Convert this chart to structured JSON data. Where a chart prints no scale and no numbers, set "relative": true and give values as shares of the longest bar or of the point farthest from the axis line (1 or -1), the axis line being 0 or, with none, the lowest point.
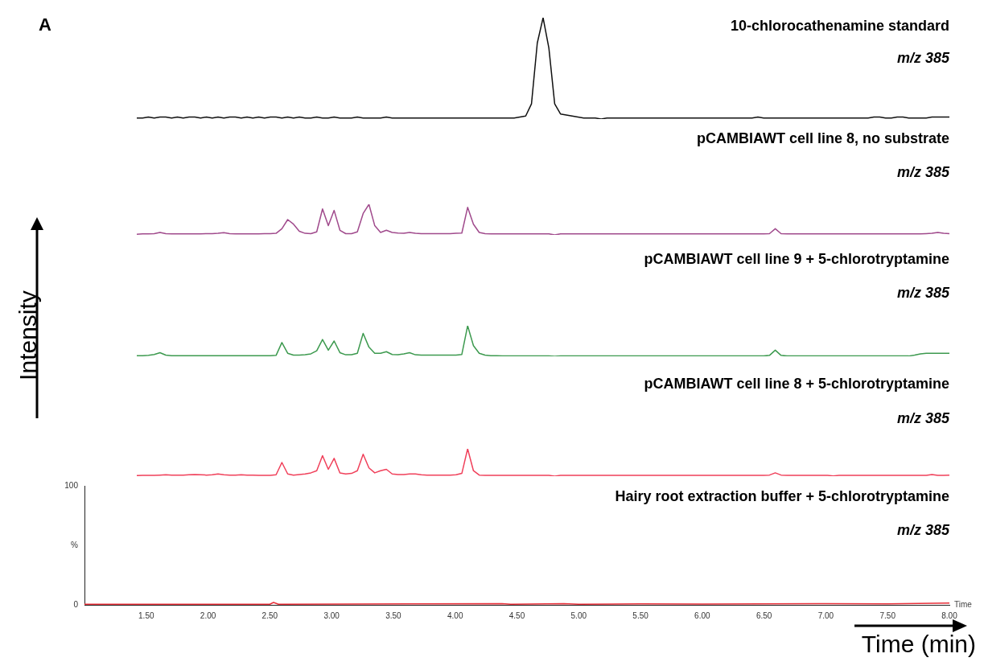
{
  "chart_data": [
    {
      "type": "line",
      "title": "10-chlorocathenamine standard",
      "subtitle": "m/z 385",
      "annotations": [
        "A"
      ],
      "relative": true,
      "color": "#111111",
      "categories": [
        null,
        null,
        null,
        null,
        null,
        null,
        null,
        null,
        null,
        null,
        null,
        null,
        null,
        null,
        null,
        null,
        null,
        null,
        null,
        null,
        null,
        null,
        null,
        null,
        null,
        null,
        null,
        null,
        null,
        null,
        null,
        null,
        null,
        null,
        null,
        null,
        null,
        null,
        null,
        null,
        null,
        null,
        null,
        null,
        null,
        null,
        null,
        null,
        null,
        null,
        null,
        null,
        null,
        null,
        null,
        null,
        null,
        null,
        null,
        null,
        null,
        null,
        null,
        null,
        null,
        null,
        null,
        null,
        null,
        null,
        null,
        null,
        null,
        null,
        null,
        null,
        null,
        null,
        null,
        null,
        null,
        null,
        null,
        null,
        null,
        null,
        null,
        null,
        null,
        null,
        null,
        null,
        null,
        null,
        null,
        null,
        null,
        null,
        null,
        null,
        null,
        null,
        null,
        null,
        null,
        null,
        null,
        null,
        null,
        null,
        null,
        null,
        null,
        null,
        null,
        null,
        null,
        null,
        null,
        null,
        null,
        null,
        null,
        null,
        null,
        null,
        null,
        null,
        null,
        null,
        null,
        null,
        null,
        null,
        null,
        null,
        null,
        null,
        null,
        null,
        null
      ],
      "values": [
        0.01,
        0.01,
        0.02,
        0.01,
        0.02,
        0.02,
        0.01,
        0.02,
        0.01,
        0.02,
        0.02,
        0.01,
        0.02,
        0.01,
        0.02,
        0.01,
        0.02,
        0.02,
        0.01,
        0.02,
        0.01,
        0.02,
        0.01,
        0.02,
        0.02,
        0.01,
        0.02,
        0.01,
        0.02,
        0.01,
        0.01,
        0.02,
        0.01,
        0.01,
        0.02,
        0.01,
        0.01,
        0.01,
        0.02,
        0.01,
        0.01,
        0.01,
        0.01,
        0.02,
        0.01,
        0.01,
        0.01,
        0.01,
        0.01,
        0.01,
        0.01,
        0.01,
        0.01,
        0.01,
        0.01,
        0.01,
        0.01,
        0.01,
        0.01,
        0.01,
        0.01,
        0.01,
        0.01,
        0.01,
        0.01,
        0.01,
        0.02,
        0.03,
        0.15,
        0.75,
        1,
        0.7,
        0.15,
        0.05,
        0.04,
        0.03,
        0.02,
        0.01,
        0.01,
        0.01,
        0,
        0.01,
        0.01,
        0.01,
        0.01,
        0.01,
        0.01,
        0.01,
        0.01,
        0.01,
        0.01,
        0.01,
        0.01,
        0.01,
        0.01,
        0.01,
        0.01,
        0.01,
        0.01,
        0.01,
        0.01,
        0.01,
        0.01,
        0.01,
        0.01,
        0.01,
        0.01,
        0.02,
        0.01,
        0.01,
        0.01,
        0.01,
        0.01,
        0.01,
        0.01,
        0.01,
        0.01,
        0.01,
        0.01,
        0.01,
        0.01,
        0.01,
        0.01,
        0.01,
        0.01,
        0.01,
        0.01,
        0.02,
        0.02,
        0.01,
        0.01,
        0.02,
        0.02,
        0.01,
        0.01,
        0.01,
        0.01,
        0.02,
        0.02,
        0.02,
        0.02
      ]
    },
    {
      "type": "line",
      "title": "pCAMBIAWT cell line 8, no substrate",
      "subtitle": "m/z 385",
      "relative": true,
      "color": "#a04a8c",
      "categories": [
        null,
        null,
        null,
        null,
        null,
        null,
        null,
        null,
        null,
        null,
        null,
        null,
        null,
        null,
        null,
        null,
        null,
        null,
        null,
        null,
        null,
        null,
        null,
        null,
        null,
        null,
        null,
        null,
        null,
        null,
        null,
        null,
        null,
        null,
        null,
        null,
        null,
        null,
        null,
        null,
        null,
        null,
        null,
        null,
        null,
        null,
        null,
        null,
        null,
        null,
        null,
        null,
        null,
        null,
        null,
        null,
        null,
        null,
        null,
        null,
        null,
        null,
        null,
        null,
        null,
        null,
        null,
        null,
        null,
        null,
        null,
        null,
        null,
        null,
        null,
        null,
        null,
        null,
        null,
        null,
        null,
        null,
        null,
        null,
        null,
        null,
        null,
        null,
        null,
        null,
        null,
        null,
        null,
        null,
        null,
        null,
        null,
        null,
        null,
        null,
        null,
        null,
        null,
        null,
        null,
        null,
        null,
        null,
        null,
        null,
        null,
        null,
        null,
        null,
        null,
        null,
        null,
        null,
        null,
        null,
        null,
        null,
        null,
        null,
        null,
        null,
        null,
        null,
        null,
        null,
        null,
        null,
        null,
        null,
        null,
        null,
        null,
        null,
        null,
        null,
        null
      ],
      "values": [
        0.02,
        0.03,
        0.03,
        0.04,
        0.08,
        0.04,
        0.03,
        0.03,
        0.03,
        0.03,
        0.03,
        0.03,
        0.04,
        0.04,
        0.05,
        0.07,
        0.04,
        0.03,
        0.03,
        0.03,
        0.03,
        0.03,
        0.04,
        0.04,
        0.05,
        0.2,
        0.5,
        0.35,
        0.12,
        0.05,
        0.04,
        0.1,
        0.85,
        0.3,
        0.8,
        0.15,
        0.04,
        0.04,
        0.1,
        0.7,
        1,
        0.3,
        0.08,
        0.15,
        0.08,
        0.06,
        0.05,
        0.08,
        0.05,
        0.04,
        0.04,
        0.04,
        0.04,
        0.04,
        0.04,
        0.05,
        0.06,
        0.9,
        0.35,
        0.08,
        0.04,
        0.03,
        0.03,
        0.03,
        0.03,
        0.03,
        0.03,
        0.03,
        0.03,
        0.03,
        0.03,
        0.03,
        0,
        0.03,
        0.03,
        0.03,
        0.03,
        0.03,
        0.03,
        0.03,
        0.03,
        0.03,
        0.03,
        0.03,
        0.03,
        0.03,
        0.03,
        0.03,
        0.03,
        0.03,
        0.03,
        0.03,
        0.03,
        0.03,
        0.03,
        0.03,
        0.03,
        0.03,
        0.03,
        0.03,
        0.03,
        0.03,
        0.03,
        0.03,
        0.03,
        0.03,
        0.03,
        0.03,
        0.03,
        0.04,
        0.2,
        0.04,
        0.03,
        0.03,
        0.03,
        0.03,
        0.03,
        0.03,
        0.03,
        0.03,
        0.03,
        0.03,
        0.03,
        0.03,
        0.03,
        0.03,
        0.03,
        0.03,
        0.03,
        0.03,
        0.03,
        0.03,
        0.03,
        0.03,
        0.03,
        0.03,
        0.04,
        0.05,
        0.08,
        0.05,
        0.04
      ]
    },
    {
      "type": "line",
      "title": "pCAMBIAWT cell line 9 + 5-chlorotryptamine",
      "subtitle": "m/z 385",
      "relative": true,
      "color": "#3d9a4f",
      "categories": [
        null,
        null,
        null,
        null,
        null,
        null,
        null,
        null,
        null,
        null,
        null,
        null,
        null,
        null,
        null,
        null,
        null,
        null,
        null,
        null,
        null,
        null,
        null,
        null,
        null,
        null,
        null,
        null,
        null,
        null,
        null,
        null,
        null,
        null,
        null,
        null,
        null,
        null,
        null,
        null,
        null,
        null,
        null,
        null,
        null,
        null,
        null,
        null,
        null,
        null,
        null,
        null,
        null,
        null,
        null,
        null,
        null,
        null,
        null,
        null,
        null,
        null,
        null,
        null,
        null,
        null,
        null,
        null,
        null,
        null,
        null,
        null,
        null,
        null,
        null,
        null,
        null,
        null,
        null,
        null,
        null,
        null,
        null,
        null,
        null,
        null,
        null,
        null,
        null,
        null,
        null,
        null,
        null,
        null,
        null,
        null,
        null,
        null,
        null,
        null,
        null,
        null,
        null,
        null,
        null,
        null,
        null,
        null,
        null,
        null,
        null,
        null,
        null,
        null,
        null,
        null,
        null,
        null,
        null,
        null,
        null,
        null,
        null,
        null,
        null,
        null,
        null,
        null,
        null,
        null,
        null,
        null,
        null,
        null,
        null,
        null,
        null,
        null,
        null,
        null,
        null
      ],
      "values": [
        0.02,
        0.02,
        0.03,
        0.06,
        0.12,
        0.04,
        0.02,
        0.02,
        0.02,
        0.02,
        0.02,
        0.02,
        0.02,
        0.02,
        0.02,
        0.02,
        0.02,
        0.02,
        0.02,
        0.02,
        0.02,
        0.02,
        0.02,
        0.02,
        0.03,
        0.45,
        0.1,
        0.04,
        0.04,
        0.05,
        0.08,
        0.18,
        0.55,
        0.2,
        0.5,
        0.12,
        0.05,
        0.05,
        0.1,
        0.75,
        0.3,
        0.1,
        0.1,
        0.15,
        0.06,
        0.05,
        0.08,
        0.12,
        0.05,
        0.04,
        0.04,
        0.04,
        0.04,
        0.04,
        0.04,
        0.04,
        0.06,
        1,
        0.35,
        0.1,
        0.04,
        0.02,
        0.02,
        0.01,
        0.01,
        0.01,
        0.01,
        0.01,
        0.01,
        0.01,
        0.01,
        0.01,
        0,
        0.01,
        0.01,
        0.01,
        0.01,
        0.01,
        0.01,
        0.01,
        0.01,
        0.01,
        0.01,
        0.01,
        0.01,
        0.01,
        0.01,
        0.01,
        0.01,
        0.01,
        0.01,
        0.01,
        0.01,
        0.01,
        0.01,
        0.01,
        0.01,
        0.01,
        0.01,
        0.01,
        0.01,
        0.01,
        0.01,
        0.01,
        0.01,
        0.01,
        0.01,
        0.01,
        0.01,
        0.03,
        0.2,
        0.03,
        0.01,
        0.01,
        0.01,
        0.01,
        0.01,
        0.01,
        0.01,
        0.01,
        0.01,
        0.01,
        0.01,
        0.01,
        0.01,
        0.01,
        0.01,
        0.01,
        0.01,
        0.01,
        0.01,
        0.01,
        0.01,
        0.01,
        0.04,
        0.08,
        0.1,
        0.1,
        0.1,
        0.1,
        0.1
      ]
    },
    {
      "type": "line",
      "title": "pCAMBIAWT cell line 8 + 5-chlorotryptamine",
      "subtitle": "m/z 385",
      "relative": true,
      "color": "#f0405a",
      "categories": [
        null,
        null,
        null,
        null,
        null,
        null,
        null,
        null,
        null,
        null,
        null,
        null,
        null,
        null,
        null,
        null,
        null,
        null,
        null,
        null,
        null,
        null,
        null,
        null,
        null,
        null,
        null,
        null,
        null,
        null,
        null,
        null,
        null,
        null,
        null,
        null,
        null,
        null,
        null,
        null,
        null,
        null,
        null,
        null,
        null,
        null,
        null,
        null,
        null,
        null,
        null,
        null,
        null,
        null,
        null,
        null,
        null,
        null,
        null,
        null,
        null,
        null,
        null,
        null,
        null,
        null,
        null,
        null,
        null,
        null,
        null,
        null,
        null,
        null,
        null,
        null,
        null,
        null,
        null,
        null,
        null,
        null,
        null,
        null,
        null,
        null,
        null,
        null,
        null,
        null,
        null,
        null,
        null,
        null,
        null,
        null,
        null,
        null,
        null,
        null,
        null,
        null,
        null,
        null,
        null,
        null,
        null,
        null,
        null,
        null,
        null,
        null,
        null,
        null,
        null,
        null,
        null,
        null,
        null,
        null,
        null,
        null,
        null,
        null,
        null,
        null,
        null,
        null,
        null,
        null,
        null,
        null,
        null,
        null,
        null,
        null,
        null,
        null,
        null,
        null,
        null
      ],
      "values": [
        0.02,
        0.03,
        0.03,
        0.03,
        0.04,
        0.05,
        0.04,
        0.04,
        0.04,
        0.05,
        0.06,
        0.05,
        0.04,
        0.05,
        0.08,
        0.05,
        0.04,
        0.04,
        0.05,
        0.04,
        0.04,
        0.03,
        0.03,
        0.03,
        0.05,
        0.5,
        0.08,
        0.04,
        0.06,
        0.08,
        0.12,
        0.2,
        0.75,
        0.25,
        0.65,
        0.12,
        0.08,
        0.1,
        0.2,
        0.8,
        0.3,
        0.12,
        0.2,
        0.25,
        0.08,
        0.06,
        0.06,
        0.08,
        0.08,
        0.05,
        0.04,
        0.04,
        0.04,
        0.04,
        0.04,
        0.05,
        0.1,
        1,
        0.2,
        0.04,
        0.03,
        0.03,
        0.03,
        0.03,
        0.03,
        0.03,
        0.03,
        0.03,
        0.03,
        0.03,
        0.03,
        0.03,
        0,
        0.03,
        0.03,
        0.03,
        0.03,
        0.03,
        0.03,
        0.03,
        0.03,
        0.03,
        0.03,
        0.03,
        0.03,
        0.03,
        0.03,
        0.03,
        0.03,
        0.03,
        0.03,
        0.03,
        0.03,
        0.03,
        0.03,
        0.03,
        0.03,
        0.03,
        0.03,
        0.03,
        0.03,
        0.03,
        0.03,
        0.03,
        0.03,
        0.03,
        0.03,
        0.03,
        0.03,
        0.04,
        0.12,
        0.04,
        0.03,
        0.03,
        0.03,
        0.03,
        0.03,
        0.03,
        0.03,
        0.03,
        0.01,
        0.03,
        0.03,
        0.03,
        0.03,
        0.03,
        0.03,
        0.03,
        0.03,
        0.03,
        0.03,
        0.03,
        0.03,
        0.03,
        0.03,
        0.03,
        0.03,
        0.06,
        0.03,
        0.03,
        0.04
      ]
    },
    {
      "type": "line",
      "title": "Hairy root extraction buffer + 5-chlorotryptamine",
      "subtitle": "m/z 385",
      "xlabel": "Time (min)",
      "ylabel": "Intensity",
      "annotations": [
        "Time"
      ],
      "color": "#e8303a",
      "xlim": [
        1.0,
        8.0
      ],
      "xticks": [
        {
          "value": 1.5,
          "label": "1.50"
        },
        {
          "value": 2.0,
          "label": "2.00"
        },
        {
          "value": 2.5,
          "label": "2.50"
        },
        {
          "value": 3.0,
          "label": "3.00"
        },
        {
          "value": 3.5,
          "label": "3.50"
        },
        {
          "value": 4.0,
          "label": "4.00"
        },
        {
          "value": 4.5,
          "label": "4.50"
        },
        {
          "value": 5.0,
          "label": "5.00"
        },
        {
          "value": 5.5,
          "label": "5.50"
        },
        {
          "value": 6.0,
          "label": "6.00"
        },
        {
          "value": 6.5,
          "label": "6.50"
        },
        {
          "value": 7.0,
          "label": "7.00"
        },
        {
          "value": 7.5,
          "label": "7.50"
        },
        {
          "value": 8.0,
          "label": "8.00"
        }
      ],
      "ylim": [
        0,
        100
      ],
      "yticks": [
        0,
        {
          "value": 50,
          "label": "%"
        },
        100
      ],
      "x": [
        1.0,
        2.0,
        2.5,
        2.53,
        2.57,
        4.38,
        4.45,
        4.88,
        5.0,
        5.5,
        6.0,
        7.0,
        7.5,
        8.0
      ],
      "values": [
        0.5,
        0.5,
        0.5,
        2,
        0.5,
        1,
        0.5,
        1,
        0.5,
        0.8,
        0.6,
        1,
        0.8,
        1.5
      ]
    }
  ]
}
